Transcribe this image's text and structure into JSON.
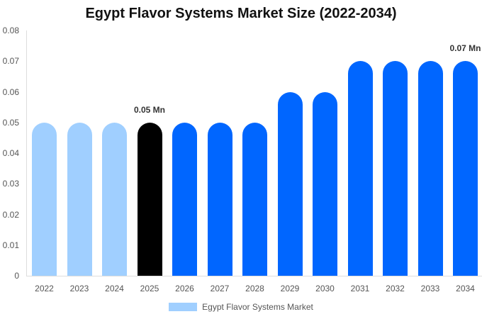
{
  "chart_data": {
    "type": "bar",
    "title": "Egypt Flavor Systems Market Size (2022-2034)",
    "xlabel": "",
    "ylabel": "",
    "ylim": [
      0,
      0.08
    ],
    "yticks": [
      "0",
      "0.01",
      "0.02",
      "0.03",
      "0.04",
      "0.05",
      "0.06",
      "0.07",
      "0.08"
    ],
    "grid": false,
    "legend_position": "bottom",
    "categories": [
      "2022",
      "2023",
      "2024",
      "2025",
      "2026",
      "2027",
      "2028",
      "2029",
      "2030",
      "2031",
      "2032",
      "2033",
      "2034"
    ],
    "series": [
      {
        "name": "Egypt Flavor Systems Market",
        "values": [
          0.05,
          0.05,
          0.05,
          0.05,
          0.05,
          0.05,
          0.05,
          0.06,
          0.06,
          0.07,
          0.07,
          0.07,
          0.07
        ]
      }
    ],
    "bar_colors": [
      "#a0cfff",
      "#a0cfff",
      "#a0cfff",
      "#000000",
      "#0066ff",
      "#0066ff",
      "#0066ff",
      "#0066ff",
      "#0066ff",
      "#0066ff",
      "#0066ff",
      "#0066ff",
      "#0066ff"
    ],
    "annotations": [
      {
        "category": "2025",
        "text": "0.05 Mn"
      },
      {
        "category": "2034",
        "text": "0.07 Mn"
      }
    ]
  },
  "legend": {
    "label": "Egypt Flavor Systems Market",
    "color": "#a0cfff"
  }
}
